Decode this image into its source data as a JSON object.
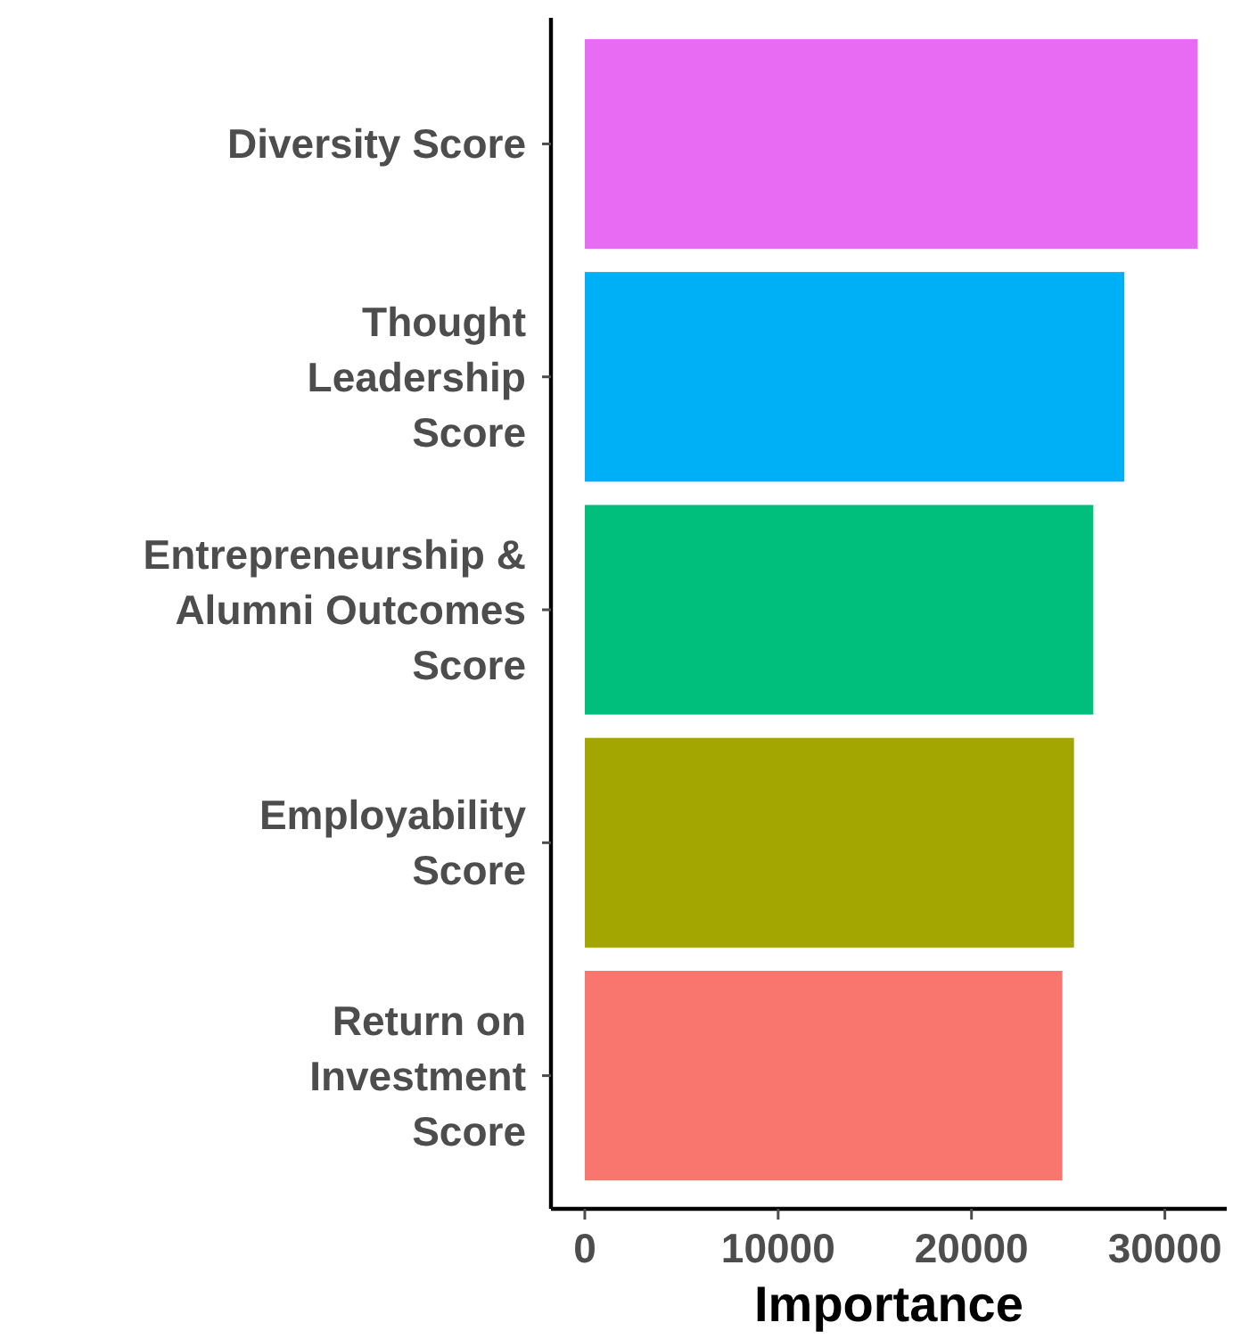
{
  "chart_data": {
    "type": "bar",
    "orientation": "horizontal",
    "xlabel": "Importance",
    "categories": [
      "Diversity Score",
      "Thought\nLeadership\nScore",
      "Entrepreneurship &\nAlumni Outcomes\nScore",
      "Employability\nScore",
      "Return on\nInvestment\nScore"
    ],
    "values": [
      31700,
      27900,
      26300,
      25300,
      24700
    ],
    "colors": [
      "#e76bf3",
      "#00b0f6",
      "#00bf7d",
      "#a3a500",
      "#f8766d"
    ],
    "xlim": [
      -1750,
      33200
    ],
    "xticks": [
      0,
      10000,
      20000,
      30000
    ],
    "grid": false
  }
}
